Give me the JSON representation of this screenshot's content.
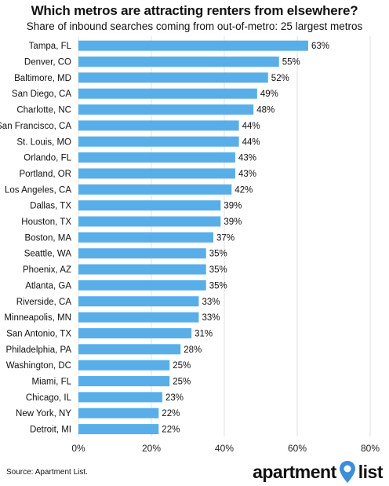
{
  "chart_data": {
    "type": "bar",
    "orientation": "horizontal",
    "title": "Which metros are attracting renters from elsewhere?",
    "subtitle": "Share of inbound searches coming from out-of-metro: 25 largest metros",
    "categories": [
      "Tampa, FL",
      "Denver, CO",
      "Baltimore, MD",
      "San Diego, CA",
      "Charlotte, NC",
      "San Francisco, CA",
      "St. Louis, MO",
      "Orlando, FL",
      "Portland, OR",
      "Los Angeles, CA",
      "Dallas, TX",
      "Houston, TX",
      "Boston, MA",
      "Seattle, WA",
      "Phoenix, AZ",
      "Atlanta, GA",
      "Riverside, CA",
      "Minneapolis, MN",
      "San Antonio, TX",
      "Philadelphia, PA",
      "Washington, DC",
      "Miami, FL",
      "Chicago, IL",
      "New York, NY",
      "Detroit, MI"
    ],
    "values": [
      63,
      55,
      52,
      49,
      48,
      44,
      44,
      43,
      43,
      42,
      39,
      39,
      37,
      35,
      35,
      35,
      33,
      33,
      31,
      28,
      25,
      25,
      23,
      22,
      22
    ],
    "data_labels": [
      "63%",
      "55%",
      "52%",
      "49%",
      "48%",
      "44%",
      "44%",
      "43%",
      "43%",
      "42%",
      "39%",
      "39%",
      "37%",
      "35%",
      "35%",
      "35%",
      "33%",
      "33%",
      "31%",
      "28%",
      "25%",
      "25%",
      "23%",
      "22%",
      "22%"
    ],
    "xlim": [
      0,
      80
    ],
    "x_ticks": [
      "0%",
      "20%",
      "40%",
      "60%",
      "80%"
    ],
    "grid": "vertical",
    "bar_color": "#5aaee8",
    "grid_color": "#e2e2e2"
  },
  "source": "Source: Apartment List.",
  "logo": {
    "left": "apartment",
    "right": "list",
    "pin_color": "#3b8fd9"
  }
}
